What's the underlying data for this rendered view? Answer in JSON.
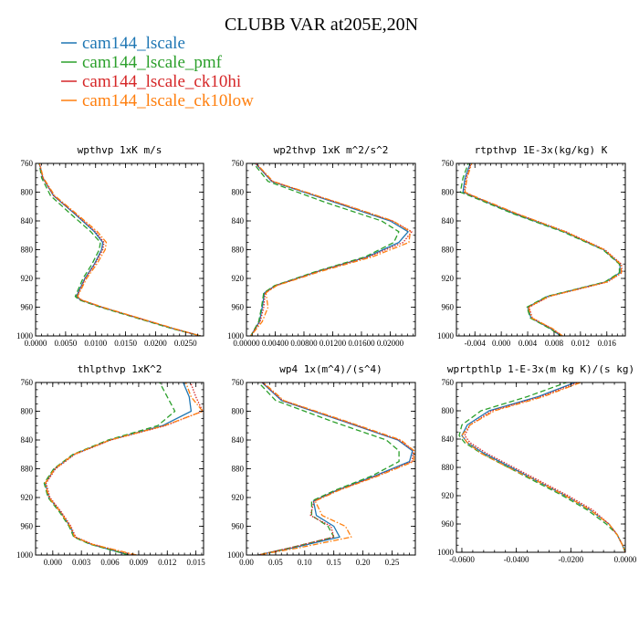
{
  "figure_title": "CLUBB VAR at205E,20N",
  "legend": [
    {
      "label": "cam144_lscale",
      "color": "#1f77b4",
      "dash": ""
    },
    {
      "label": "cam144_lscale_pmf",
      "color": "#2ca02c",
      "dash": "6,3"
    },
    {
      "label": "cam144_lscale_ck10hi",
      "color": "#d62728",
      "dash": "1.5,1.5"
    },
    {
      "label": "cam144_lscale_ck10low",
      "color": "#ff7f0e",
      "dash": "6,2,1.5,2"
    }
  ],
  "chart_data": [
    {
      "type": "line",
      "title": "wpthvp  1xK m/s",
      "y_ticks": [
        "760",
        "800",
        "840",
        "880",
        "920",
        "960",
        "1000"
      ],
      "ylim": [
        760,
        1000
      ],
      "y_inverted": true,
      "xlim": [
        0.0,
        0.028
      ],
      "x_ticks": [
        0.0,
        0.005,
        0.01,
        0.015,
        0.02,
        0.025
      ],
      "x_tick_labels": [
        "0.0000",
        "0.0050",
        "0.0100",
        "0.0150",
        "0.0200",
        "0.0250"
      ],
      "y": [
        755,
        780,
        805,
        830,
        855,
        870,
        880,
        900,
        920,
        945,
        950,
        960,
        975,
        990,
        1000
      ],
      "series": [
        {
          "values": [
            0.0005,
            0.0012,
            0.003,
            0.0065,
            0.0098,
            0.0112,
            0.011,
            0.0098,
            0.0082,
            0.0068,
            0.0075,
            0.011,
            0.017,
            0.023,
            0.0275
          ]
        },
        {
          "values": [
            0.0005,
            0.001,
            0.0025,
            0.0058,
            0.0092,
            0.0108,
            0.0106,
            0.0094,
            0.0079,
            0.0066,
            0.0073,
            0.0108,
            0.0168,
            0.0228,
            0.0275
          ]
        },
        {
          "values": [
            0.0005,
            0.0012,
            0.003,
            0.0066,
            0.01,
            0.0114,
            0.0112,
            0.0099,
            0.0083,
            0.0069,
            0.0076,
            0.0111,
            0.0171,
            0.0231,
            0.0275
          ]
        },
        {
          "values": [
            0.0005,
            0.0013,
            0.0032,
            0.0068,
            0.0103,
            0.0118,
            0.0116,
            0.0102,
            0.0085,
            0.007,
            0.0077,
            0.0112,
            0.0172,
            0.0232,
            0.0275
          ]
        }
      ]
    },
    {
      "type": "line",
      "title": "wp2thvp  1xK m^2/s^2",
      "y_ticks": [
        "760",
        "800",
        "840",
        "880",
        "920",
        "960",
        "1000"
      ],
      "ylim": [
        760,
        1000
      ],
      "y_inverted": true,
      "xlim": [
        0.0,
        0.0235
      ],
      "x_ticks": [
        0.0,
        0.004,
        0.008,
        0.012,
        0.016,
        0.02
      ],
      "x_tick_labels": [
        "0.00000",
        "0.00400",
        "0.00800",
        "0.01200",
        "0.01600",
        "0.02000"
      ],
      "y": [
        755,
        785,
        815,
        840,
        855,
        870,
        890,
        910,
        930,
        940,
        960,
        980,
        1000
      ],
      "series": [
        {
          "values": [
            0.0008,
            0.0035,
            0.0125,
            0.02,
            0.0225,
            0.0212,
            0.0168,
            0.01,
            0.004,
            0.0025,
            0.0022,
            0.0018,
            0.0006
          ]
        },
        {
          "values": [
            0.0006,
            0.003,
            0.0112,
            0.0188,
            0.0212,
            0.0205,
            0.0165,
            0.0098,
            0.0039,
            0.0024,
            0.0021,
            0.0017,
            0.0006
          ]
        },
        {
          "values": [
            0.0008,
            0.0036,
            0.0128,
            0.0203,
            0.023,
            0.0218,
            0.017,
            0.0101,
            0.0041,
            0.0026,
            0.0024,
            0.0019,
            0.0006
          ]
        },
        {
          "values": [
            0.0009,
            0.0037,
            0.0129,
            0.0204,
            0.0228,
            0.0226,
            0.0175,
            0.0104,
            0.0042,
            0.0027,
            0.003,
            0.0022,
            0.0006
          ]
        }
      ]
    },
    {
      "type": "line",
      "title": "rtpthvp  1E-3x(kg/kg) K",
      "y_ticks": [
        "760",
        "800",
        "840",
        "880",
        "920",
        "960",
        "1000"
      ],
      "ylim": [
        760,
        1000
      ],
      "y_inverted": true,
      "xlim": [
        -0.0068,
        0.0188
      ],
      "x_ticks": [
        -0.004,
        0.0,
        0.004,
        0.008,
        0.012,
        0.016
      ],
      "x_tick_labels": [
        "-0.004",
        "0.000",
        "0.004",
        "0.008",
        "0.012",
        "0.016"
      ],
      "y": [
        755,
        780,
        800,
        805,
        830,
        855,
        880,
        900,
        912,
        925,
        945,
        960,
        975,
        990,
        1000
      ],
      "series": [
        {
          "values": [
            -0.0045,
            -0.0055,
            -0.0058,
            -0.0045,
            0.002,
            0.0095,
            0.0155,
            0.018,
            0.018,
            0.0158,
            0.007,
            0.004,
            0.0045,
            0.0075,
            0.009
          ]
        },
        {
          "values": [
            -0.0048,
            -0.0058,
            -0.0062,
            -0.0048,
            0.0018,
            0.0093,
            0.0154,
            0.0179,
            0.0179,
            0.0157,
            0.0069,
            0.0039,
            0.0044,
            0.0074,
            0.009
          ]
        },
        {
          "values": [
            -0.0044,
            -0.0053,
            -0.0056,
            -0.0044,
            0.0023,
            0.0098,
            0.0157,
            0.0182,
            0.0183,
            0.0161,
            0.0073,
            0.0042,
            0.0047,
            0.0077,
            0.0092
          ]
        },
        {
          "values": [
            -0.0043,
            -0.0052,
            -0.0055,
            -0.0043,
            0.0024,
            0.0097,
            0.0156,
            0.0181,
            0.0182,
            0.016,
            0.0072,
            0.0041,
            0.0046,
            0.0078,
            0.0093
          ]
        }
      ]
    },
    {
      "type": "line",
      "title": "thlpthvp  1xK^2",
      "y_ticks": [
        "760",
        "800",
        "840",
        "880",
        "920",
        "960",
        "1000"
      ],
      "ylim": [
        760,
        1000
      ],
      "y_inverted": true,
      "xlim": [
        -0.0018,
        0.0158
      ],
      "x_ticks": [
        0.0,
        0.003,
        0.006,
        0.009,
        0.012,
        0.015
      ],
      "x_tick_labels": [
        "0.000",
        "0.003",
        "0.006",
        "0.009",
        "0.012",
        "0.015"
      ],
      "y": [
        755,
        780,
        800,
        820,
        840,
        860,
        880,
        900,
        920,
        940,
        960,
        975,
        985,
        1000
      ],
      "series": [
        {
          "values": [
            0.0135,
            0.0143,
            0.0145,
            0.0115,
            0.006,
            0.0022,
            0.0002,
            -0.0008,
            -0.0004,
            0.0008,
            0.0018,
            0.0023,
            0.004,
            0.008
          ]
        },
        {
          "values": [
            0.011,
            0.012,
            0.0128,
            0.011,
            0.0058,
            0.0021,
            0.0001,
            -0.0009,
            -0.0005,
            0.0007,
            0.0017,
            0.0022,
            0.0039,
            0.008
          ]
        },
        {
          "values": [
            0.0143,
            0.015,
            0.0157,
            0.0118,
            0.0061,
            0.0023,
            0.0003,
            -0.0007,
            -0.0003,
            0.0009,
            0.0019,
            0.0024,
            0.0042,
            0.0085
          ]
        },
        {
          "values": [
            0.0138,
            0.0145,
            0.0157,
            0.0117,
            0.006,
            0.0022,
            0.0002,
            -0.0008,
            -0.0004,
            0.0008,
            0.0018,
            0.0023,
            0.0041,
            0.0088
          ]
        }
      ]
    },
    {
      "type": "line",
      "title": "wp4  1x(m^4)/(s^4)",
      "y_ticks": [
        "760",
        "800",
        "840",
        "880",
        "920",
        "960",
        "1000"
      ],
      "ylim": [
        760,
        1000
      ],
      "y_inverted": true,
      "xlim": [
        0.0,
        0.29
      ],
      "x_ticks": [
        0.0,
        0.05,
        0.1,
        0.15,
        0.2,
        0.25
      ],
      "x_tick_labels": [
        "0.00",
        "0.05",
        "0.10",
        "0.15",
        "0.20",
        "0.25"
      ],
      "y": [
        755,
        785,
        815,
        840,
        855,
        870,
        890,
        910,
        925,
        945,
        960,
        975,
        990,
        1000
      ],
      "series": [
        {
          "values": [
            0.02,
            0.06,
            0.17,
            0.26,
            0.285,
            0.28,
            0.22,
            0.155,
            0.115,
            0.12,
            0.15,
            0.16,
            0.08,
            0.02
          ]
        },
        {
          "values": [
            0.015,
            0.05,
            0.15,
            0.24,
            0.262,
            0.262,
            0.215,
            0.152,
            0.112,
            0.112,
            0.14,
            0.15,
            0.075,
            0.02
          ]
        },
        {
          "values": [
            0.02,
            0.062,
            0.172,
            0.262,
            0.287,
            0.284,
            0.223,
            0.157,
            0.116,
            0.11,
            0.145,
            0.15,
            0.075,
            0.02
          ]
        },
        {
          "values": [
            0.022,
            0.064,
            0.175,
            0.265,
            0.288,
            0.287,
            0.226,
            0.159,
            0.118,
            0.13,
            0.17,
            0.18,
            0.09,
            0.02
          ]
        }
      ]
    },
    {
      "type": "line",
      "title": "wprtpthlp  1-E-3x(m kg K)/(s kg)",
      "y_ticks": [
        "760",
        "800",
        "840",
        "880",
        "920",
        "960",
        "1000"
      ],
      "ylim": [
        760,
        1000
      ],
      "y_inverted": true,
      "xlim": [
        -0.062,
        0.0
      ],
      "x_ticks": [
        -0.06,
        -0.04,
        -0.02,
        0.0
      ],
      "x_tick_labels": [
        "-0.0600",
        "-0.0400",
        "-0.0200",
        "0.0000"
      ],
      "y": [
        755,
        780,
        800,
        820,
        835,
        845,
        860,
        880,
        900,
        920,
        940,
        960,
        975,
        990,
        1000
      ],
      "series": [
        {
          "values": [
            -0.015,
            -0.032,
            -0.05,
            -0.058,
            -0.06,
            -0.058,
            -0.052,
            -0.042,
            -0.032,
            -0.022,
            -0.013,
            -0.006,
            -0.003,
            -0.001,
            0.0
          ]
        },
        {
          "values": [
            -0.018,
            -0.036,
            -0.053,
            -0.06,
            -0.061,
            -0.059,
            -0.053,
            -0.043,
            -0.033,
            -0.023,
            -0.014,
            -0.007,
            -0.003,
            -0.001,
            0.0
          ]
        },
        {
          "values": [
            -0.014,
            -0.031,
            -0.049,
            -0.057,
            -0.059,
            -0.057,
            -0.051,
            -0.041,
            -0.031,
            -0.021,
            -0.012,
            -0.006,
            -0.003,
            -0.001,
            0.0
          ]
        },
        {
          "values": [
            -0.013,
            -0.03,
            -0.048,
            -0.057,
            -0.06,
            -0.058,
            -0.053,
            -0.043,
            -0.032,
            -0.022,
            -0.013,
            -0.006,
            -0.003,
            -0.001,
            0.0
          ]
        }
      ]
    }
  ]
}
